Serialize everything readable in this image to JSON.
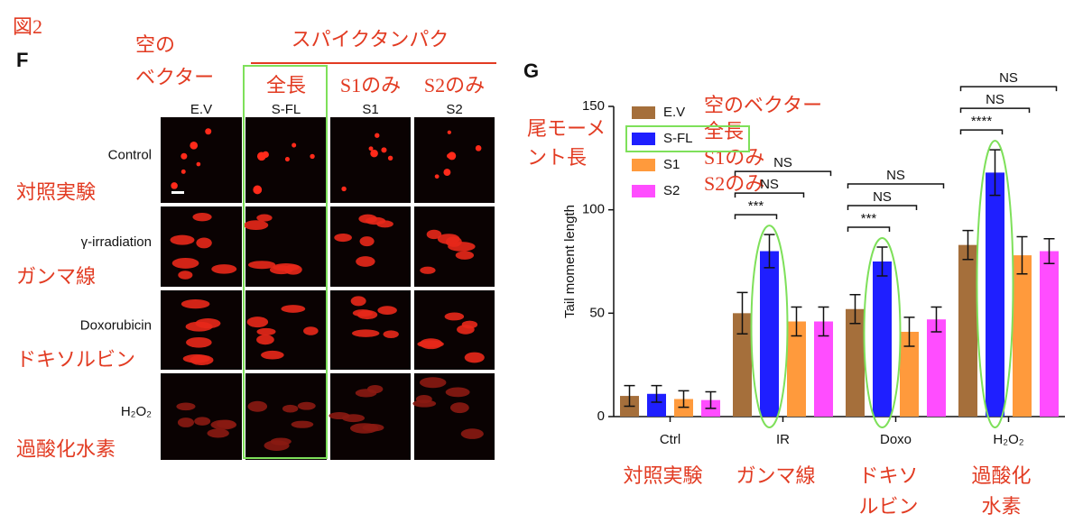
{
  "figure_label": "図2",
  "panel_f": {
    "label": "F",
    "header": "スパイクタンパク",
    "empty_vector_note": [
      "空の",
      "ベクター"
    ],
    "columns": [
      "E.V",
      "S-FL",
      "S1",
      "S2"
    ],
    "column_notes": [
      "全長",
      "S1のみ",
      "S2のみ"
    ],
    "rows": [
      {
        "label": "Control",
        "note": "対照実験"
      },
      {
        "label": "γ-irradiation",
        "note": "ガンマ線"
      },
      {
        "label": "Doxorubicin",
        "note": "ドキソルビン"
      },
      {
        "label": "H₂O₂",
        "note": "過酸化水素"
      }
    ]
  },
  "chart_data": {
    "type": "bar",
    "panel_label": "G",
    "y_label": "Tail moment length",
    "y_label_note": [
      "尾モーメ",
      "ント長"
    ],
    "categories": [
      "Ctrl",
      "IR",
      "Doxo",
      "H₂O₂"
    ],
    "category_notes": [
      [
        "対照実験"
      ],
      [
        "ガンマ線"
      ],
      [
        "ドキソ",
        "ルビン"
      ],
      [
        "過酸化",
        "水素"
      ]
    ],
    "series": [
      {
        "name": "E.V",
        "note": "空のベクター",
        "color": "#a56f3b",
        "values": [
          10,
          50,
          52,
          83
        ],
        "errors": [
          5,
          10,
          7,
          7
        ]
      },
      {
        "name": "S-FL",
        "note": "全長",
        "color": "#1f1fff",
        "values": [
          11,
          80,
          75,
          118
        ],
        "errors": [
          4,
          8,
          7,
          11
        ]
      },
      {
        "name": "S1",
        "note": "S1のみ",
        "color": "#ff9a3c",
        "values": [
          8.5,
          46,
          41,
          78
        ],
        "errors": [
          4,
          7,
          7,
          9
        ]
      },
      {
        "name": "S2",
        "note": "S2のみ",
        "color": "#ff4dff",
        "values": [
          8,
          46,
          47,
          80
        ],
        "errors": [
          4,
          7,
          6,
          6
        ]
      }
    ],
    "ylim": [
      0,
      150
    ],
    "yticks": [
      0,
      50,
      100,
      150
    ],
    "comparisons": [
      [],
      [
        {
          "label": "***",
          "series": [
            0,
            1
          ]
        },
        {
          "label": "NS",
          "series": [
            0,
            2
          ]
        },
        {
          "label": "NS",
          "series": [
            0,
            3
          ]
        }
      ],
      [
        {
          "label": "***",
          "series": [
            0,
            1
          ]
        },
        {
          "label": "NS",
          "series": [
            0,
            2
          ]
        },
        {
          "label": "NS",
          "series": [
            0,
            3
          ]
        }
      ],
      [
        {
          "label": "****",
          "series": [
            0,
            1
          ]
        },
        {
          "label": "NS",
          "series": [
            0,
            2
          ]
        },
        {
          "label": "NS",
          "series": [
            0,
            3
          ]
        }
      ]
    ]
  }
}
